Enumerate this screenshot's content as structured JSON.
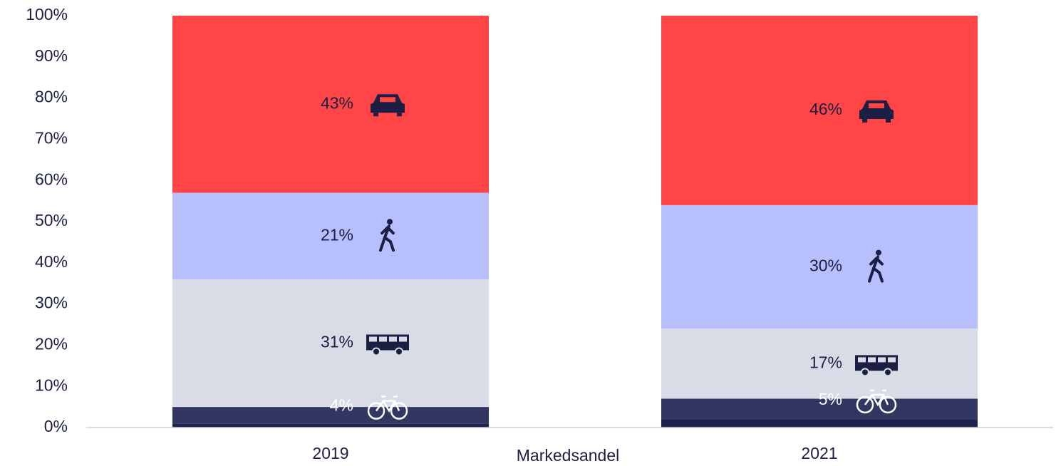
{
  "chart_data": {
    "type": "stacked_bar",
    "categories": [
      "2019",
      "2021"
    ],
    "x_label": "Markedsandel",
    "series": [
      {
        "color": "#1e2350",
        "values": [
          1,
          2
        ]
      },
      {
        "color": "#323761",
        "values": [
          4,
          5
        ],
        "value_labels": [
          "4%",
          "5%"
        ],
        "label_color": "#ffffff"
      },
      {
        "color": "#d9dbe7",
        "values": [
          31,
          17
        ],
        "value_labels": [
          "31%",
          "17%"
        ],
        "label_color": "#1b1f44"
      },
      {
        "color": "#b7bffc",
        "values": [
          21,
          30
        ],
        "value_labels": [
          "21%",
          "30%"
        ],
        "label_color": "#1b1f44"
      },
      {
        "color": "#ff4545",
        "values": [
          43,
          46
        ],
        "value_labels": [
          "43%",
          "46%"
        ],
        "label_color": "#1b1f44"
      }
    ],
    "ylim": [
      0,
      100
    ],
    "yticks": [
      {
        "value": 0,
        "label": "0%"
      },
      {
        "value": 10,
        "label": "10%"
      },
      {
        "value": 20,
        "label": "20%"
      },
      {
        "value": 30,
        "label": "30%"
      },
      {
        "value": 40,
        "label": "40%"
      },
      {
        "value": 50,
        "label": "50%"
      },
      {
        "value": 60,
        "label": "60%"
      },
      {
        "value": 70,
        "label": "70%"
      },
      {
        "value": 80,
        "label": "80%"
      },
      {
        "value": 90,
        "label": "90%"
      },
      {
        "value": 100,
        "label": "100%"
      }
    ]
  }
}
